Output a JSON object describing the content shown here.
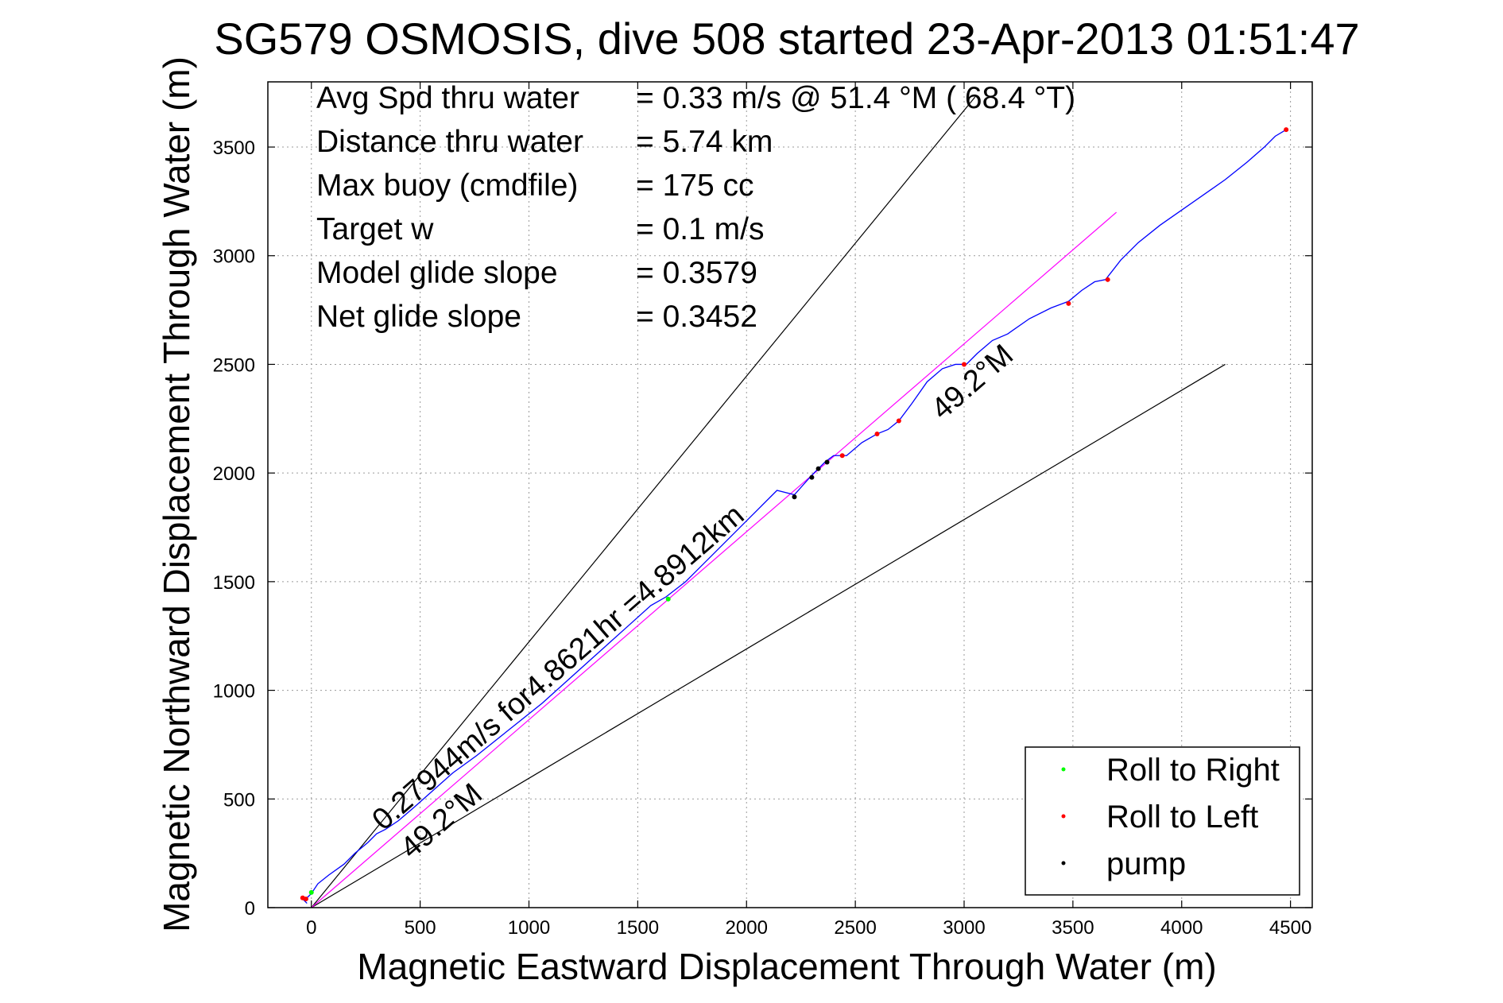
{
  "chart_data": {
    "type": "line",
    "title": "SG579 OSMOSIS, dive 508 started 23-Apr-2013 01:51:47",
    "xlabel": "Magnetic Eastward Displacement Through Water (m)",
    "ylabel": "Magnetic Northward Displacement Through Water (m)",
    "xlim": [
      -200,
      4600
    ],
    "ylim": [
      0,
      3800
    ],
    "xticks": [
      0,
      500,
      1000,
      1500,
      2000,
      2500,
      3000,
      3500,
      4000,
      4500
    ],
    "yticks": [
      0,
      500,
      1000,
      1500,
      2000,
      2500,
      3000,
      3500
    ],
    "grid": true,
    "info": [
      {
        "label": "Avg Spd thru water",
        "value": "=  0.33 m/s @  51.4 °M ( 68.4 °T)"
      },
      {
        "label": "Distance thru water",
        "value": "=  5.74 km"
      },
      {
        "label": "Max buoy (cmdfile)",
        "value": "= 175 cc"
      },
      {
        "label": "Target w",
        "value": "= 0.1 m/s"
      },
      {
        "label": "Model glide slope",
        "value": "= 0.3579"
      },
      {
        "label": "Net glide slope",
        "value": "= 0.3452"
      }
    ],
    "annotations": [
      {
        "text": "0.27944m/s for4.8621hr =4.8912km",
        "x": 330,
        "y": 350
      },
      {
        "text": "49.2°M",
        "x": 460,
        "y": 220
      },
      {
        "text": "49.2°M",
        "x": 2900,
        "y": 2240
      }
    ],
    "reference_lines": [
      {
        "name": "heading-upper",
        "color": "#000000",
        "x": [
          0,
          3050
        ],
        "y": [
          0,
          3730
        ]
      },
      {
        "name": "heading-lower",
        "color": "#000000",
        "x": [
          0,
          4200
        ],
        "y": [
          0,
          2500
        ]
      },
      {
        "name": "model-track",
        "color": "#ff00ff",
        "x": [
          0,
          3700
        ],
        "y": [
          0,
          3200
        ]
      }
    ],
    "track": {
      "color": "#0000ff",
      "x": [
        -20,
        -35,
        -15,
        0,
        30,
        80,
        150,
        200,
        260,
        300,
        340,
        400,
        470,
        560,
        650,
        760,
        860,
        960,
        1060,
        1160,
        1260,
        1360,
        1460,
        1560,
        1630,
        1720,
        1820,
        1900,
        1980,
        2060,
        2140,
        2220,
        2300,
        2360,
        2400,
        2460,
        2530,
        2600,
        2650,
        2700,
        2760,
        2830,
        2900,
        2960,
        3010,
        3060,
        3130,
        3200,
        3300,
        3400,
        3480,
        3540,
        3600,
        3650,
        3720,
        3800,
        3900,
        4000,
        4100,
        4200,
        4300,
        4380,
        4430,
        4480
      ],
      "y": [
        20,
        35,
        50,
        65,
        110,
        150,
        200,
        250,
        300,
        340,
        360,
        400,
        460,
        540,
        620,
        700,
        780,
        860,
        940,
        1030,
        1120,
        1210,
        1300,
        1390,
        1430,
        1500,
        1600,
        1680,
        1760,
        1840,
        1920,
        1900,
        1990,
        2050,
        2080,
        2080,
        2140,
        2180,
        2200,
        2240,
        2320,
        2420,
        2480,
        2500,
        2500,
        2550,
        2610,
        2640,
        2710,
        2760,
        2790,
        2840,
        2880,
        2890,
        2980,
        3060,
        3140,
        3210,
        3280,
        3350,
        3430,
        3500,
        3550,
        3580
      ]
    },
    "legend": {
      "position": "bottom-right",
      "entries": [
        {
          "label": "Roll to Right",
          "color": "#00ff00"
        },
        {
          "label": "Roll to Left",
          "color": "#ff0000"
        },
        {
          "label": "pump",
          "color": "#000000"
        }
      ]
    },
    "roll_right_points": {
      "color": "#00ff00",
      "x": [
        0,
        1640
      ],
      "y": [
        70,
        1420
      ]
    },
    "roll_left_points": {
      "color": "#ff0000",
      "x": [
        -40,
        -25,
        2440,
        2600,
        2700,
        3000,
        3480,
        3660,
        4480
      ],
      "y": [
        45,
        40,
        2080,
        2180,
        2240,
        2500,
        2780,
        2890,
        3580
      ]
    },
    "pump_points": {
      "color": "#000000",
      "x": [
        2220,
        2300,
        2330,
        2370
      ],
      "y": [
        1890,
        1980,
        2020,
        2050
      ]
    }
  }
}
